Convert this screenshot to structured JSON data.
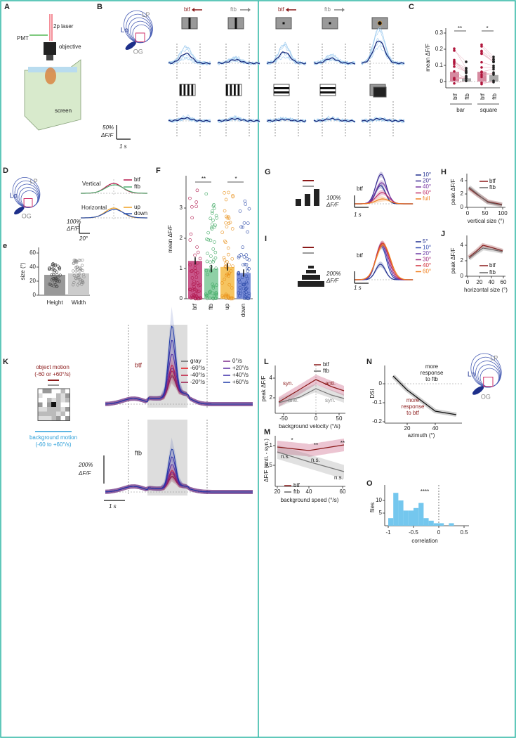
{
  "figure": {
    "A": {
      "label": "A",
      "laser": "2p laser",
      "pmt": "PMT",
      "objective": "objective",
      "screen": "screen"
    },
    "B": {
      "label": "B",
      "lp": "LP",
      "lo": "Lo",
      "og": "OG",
      "stim": [
        "btf",
        "ftb",
        "btf",
        "ftb"
      ],
      "scale_y": "50%",
      "scale_unit": "ΔF/F",
      "scale_x": "1 s"
    },
    "C": {
      "label": "C",
      "ylabel": "mean ΔF/F",
      "yticks": [
        "0",
        "0.1",
        "0.2",
        "0.3"
      ],
      "xticks": [
        "btf",
        "ftb",
        "btf",
        "ftb"
      ],
      "groups": [
        "bar",
        "square"
      ],
      "stars": [
        "**",
        "*"
      ]
    },
    "D": {
      "label": "D",
      "lp": "LP",
      "lo": "Lo",
      "og": "OG",
      "vertical": "Vertical",
      "horizontal": "Horizontal",
      "legend_v": [
        "btf",
        "ftb"
      ],
      "legend_h": [
        "up",
        "down"
      ],
      "scale_y": "100%",
      "scale_unit": "ΔF/F",
      "scale_x": "20°"
    },
    "e": {
      "label": "e",
      "ylabel": "size (°)",
      "yticks": [
        "0",
        "20",
        "40",
        "60"
      ],
      "xticks": [
        "Height",
        "Width"
      ]
    },
    "F": {
      "label": "F",
      "ylabel": "mean ΔF/F",
      "yticks": [
        "0",
        "1",
        "2",
        "3"
      ],
      "xticks": [
        "btf",
        "ftb",
        "up",
        "down"
      ],
      "stars": [
        "**",
        "*"
      ]
    },
    "G": {
      "label": "G",
      "condition": "btf",
      "legend": [
        "10°",
        "20°",
        "40°",
        "60°",
        "full"
      ],
      "scale_y": "100%",
      "scale_unit": "ΔF/F",
      "scale_x": "1 s"
    },
    "H": {
      "label": "H",
      "ylabel": "peak ΔF/F",
      "yticks": [
        "0",
        "2",
        "4"
      ],
      "xticks": [
        "0",
        "50",
        "100"
      ],
      "xlabel": "vertical size (°)",
      "legend": [
        "btf",
        "ftb"
      ]
    },
    "I": {
      "label": "I",
      "condition": "btf",
      "legend": [
        "5°",
        "10°",
        "20°",
        "30°",
        "40°",
        "60°"
      ],
      "scale_y": "200%",
      "scale_unit": "ΔF/F",
      "scale_x": "1 s"
    },
    "J": {
      "label": "J",
      "ylabel": "peak ΔF/F",
      "yticks": [
        "0",
        "2",
        "4"
      ],
      "xticks": [
        "0",
        "20",
        "40",
        "60"
      ],
      "xlabel": "horizontal size (°)",
      "legend": [
        "btf",
        "ftb"
      ]
    },
    "K": {
      "label": "K",
      "object": "object motion",
      "object_range": "(-60 or +60°/s)",
      "background": "background motion",
      "background_range": "(-60 to +60°/s)",
      "conditions": [
        "btf",
        "ftb"
      ],
      "legend": [
        "gray",
        "-60°/s",
        "-40°/s",
        "-20°/s",
        "0°/s",
        "+20°/s",
        "+40°/s",
        "+60°/s"
      ],
      "scale_y": "200%",
      "scale_unit": "ΔF/F",
      "scale_x": "1 s"
    },
    "L": {
      "label": "L",
      "ylabel": "peak ΔF/F",
      "yticks": [
        "2",
        "4"
      ],
      "xticks": [
        "-50",
        "0",
        "50"
      ],
      "xlabel": "background velocity (°/s)",
      "legend": [
        "btf",
        "ftb"
      ],
      "annotations": [
        "syn.",
        "anti.",
        "anti.",
        "syn."
      ]
    },
    "M": {
      "label": "M",
      "ylabel": "ΔF/F (anti. - syn.)",
      "yticks": [
        "0.5",
        "1"
      ],
      "xticks": [
        "20",
        "40",
        "60"
      ],
      "xlabel": "background speed (°/s)",
      "legend": [
        "btf",
        "ftb"
      ],
      "stars": [
        "*",
        "**",
        "**"
      ],
      "ns": [
        "n.s.",
        "n.s.",
        "n.s."
      ]
    },
    "N": {
      "label": "N",
      "ylabel": "DSI",
      "yticks": [
        "0",
        "-0.1",
        "-0.2"
      ],
      "xticks": [
        "20",
        "40"
      ],
      "xlabel": "azimuth (°)",
      "top_note": [
        "more",
        "response",
        "to ftb"
      ],
      "bottom_note": [
        "more",
        "response",
        "to btf"
      ],
      "lp": "LP",
      "lo": "Lo",
      "og": "OG"
    },
    "O": {
      "label": "O",
      "ylabel": "flies",
      "yticks": [
        "5",
        "10"
      ],
      "xticks": [
        "-1",
        "-0.5",
        "0",
        "0.5"
      ],
      "xlabel": "correlation",
      "stars": "****"
    }
  }
}
